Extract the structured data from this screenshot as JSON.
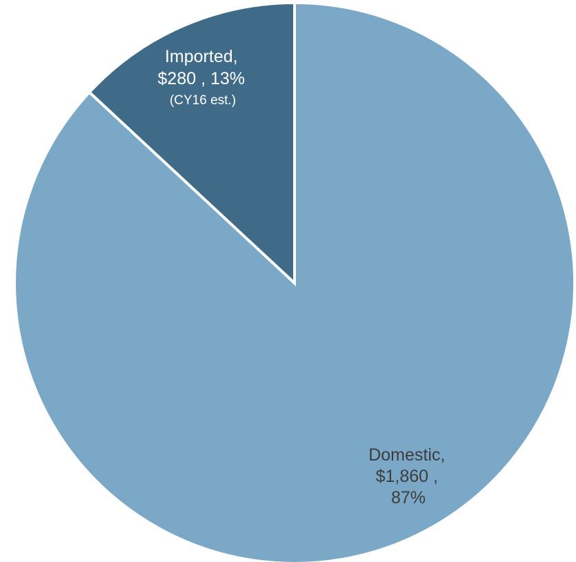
{
  "chart_data": {
    "type": "pie",
    "title": "",
    "legend": "none",
    "slices": [
      {
        "label": "Domestic",
        "value": 1860,
        "value_text": "$1,860",
        "percent": 87,
        "percent_text": "87%",
        "color": "#7ba8c7",
        "label_color": "#3d3d3d",
        "label_lines": [
          "Domestic,",
          "$1,860 ,",
          "87%"
        ],
        "note": ""
      },
      {
        "label": "Imported",
        "value": 280,
        "value_text": "$280",
        "percent": 13,
        "percent_text": "13%",
        "color": "#3f6b88",
        "label_color": "#ffffff",
        "label_lines": [
          "Imported,",
          "$280 , 13%"
        ],
        "note": "(CY16 est.)"
      }
    ]
  }
}
